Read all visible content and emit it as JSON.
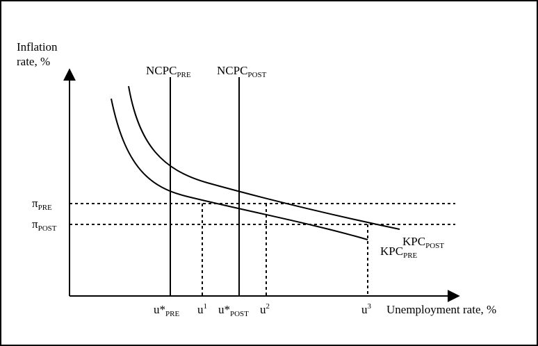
{
  "axes": {
    "y_label_line1": "Inflation",
    "y_label_line2": "rate, %",
    "x_label": "Unemployment rate, %"
  },
  "curves": {
    "ncpc_pre": {
      "main": "NCPC",
      "sub": "PRE"
    },
    "ncpc_post": {
      "main": "NCPC",
      "sub": "POST"
    },
    "kpc_pre": {
      "main": "KPC",
      "sub": "PRE"
    },
    "kpc_post": {
      "main": "KPC",
      "sub": "POST"
    }
  },
  "y_ticks": {
    "pi_pre": {
      "main": "π",
      "sub": "PRE"
    },
    "pi_post": {
      "main": "π",
      "sub": "POST"
    }
  },
  "x_ticks": {
    "u_star_pre": {
      "main": "u*",
      "sub": "PRE"
    },
    "u1": {
      "main": "u",
      "sup": "1"
    },
    "u_star_post": {
      "main": "u*",
      "sub": "POST"
    },
    "u2": {
      "main": "u",
      "sup": "2"
    },
    "u3": {
      "main": "u",
      "sup": "3"
    }
  }
}
